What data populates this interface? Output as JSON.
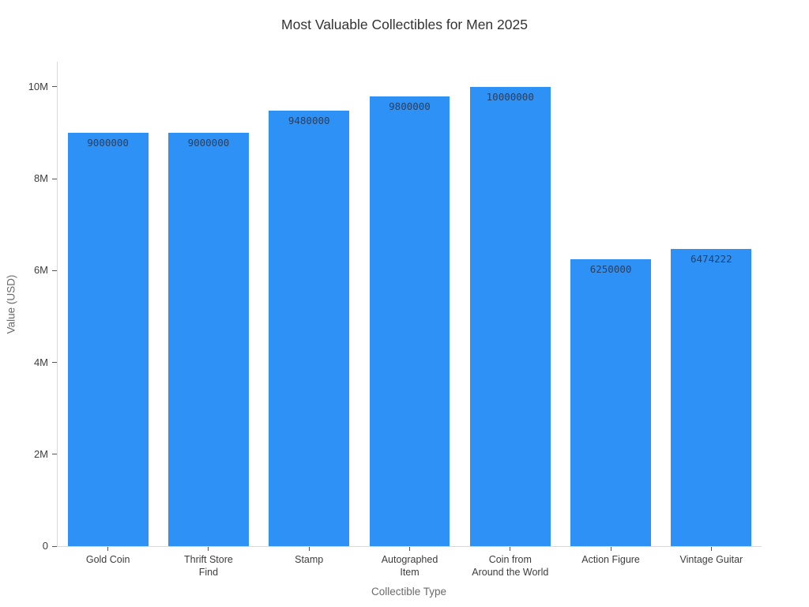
{
  "chart_data": {
    "type": "bar",
    "title": "Most Valuable Collectibles for Men 2025",
    "xlabel": "Collectible Type",
    "ylabel": "Value (USD)",
    "categories": [
      "Gold Coin",
      "Thrift Store Find",
      "Stamp",
      "Autographed Item",
      "Coin from Around the World",
      "Action Figure",
      "Vintage Guitar"
    ],
    "category_tick_lines": [
      [
        "Gold Coin"
      ],
      [
        "Thrift Store",
        "Find"
      ],
      [
        "Stamp"
      ],
      [
        "Autographed",
        "Item"
      ],
      [
        "Coin from",
        "Around the World"
      ],
      [
        "Action Figure"
      ],
      [
        "Vintage Guitar"
      ]
    ],
    "values": [
      9000000,
      9000000,
      9480000,
      9800000,
      10000000,
      6250000,
      6474222
    ],
    "bar_value_labels": [
      "9000000",
      "9000000",
      "9480000",
      "9800000",
      "10000000",
      "6250000",
      "6474222"
    ],
    "yticks": [
      {
        "value": 0,
        "label": "0"
      },
      {
        "value": 2000000,
        "label": "2M"
      },
      {
        "value": 4000000,
        "label": "4M"
      },
      {
        "value": 6000000,
        "label": "6M"
      },
      {
        "value": 8000000,
        "label": "8M"
      },
      {
        "value": 10000000,
        "label": "10M"
      }
    ],
    "ylim": [
      0,
      10550000
    ],
    "grid": false,
    "legend": "none",
    "colors": {
      "bar": "#2E91F5",
      "bar_label": "#2a3f5f",
      "axis_line": "#d9d9d9",
      "tick_mark": "#555555",
      "tick_label": "#3d3d3d",
      "axis_title": "#6b6b6b",
      "title": "#333333",
      "background": "#ffffff"
    }
  }
}
